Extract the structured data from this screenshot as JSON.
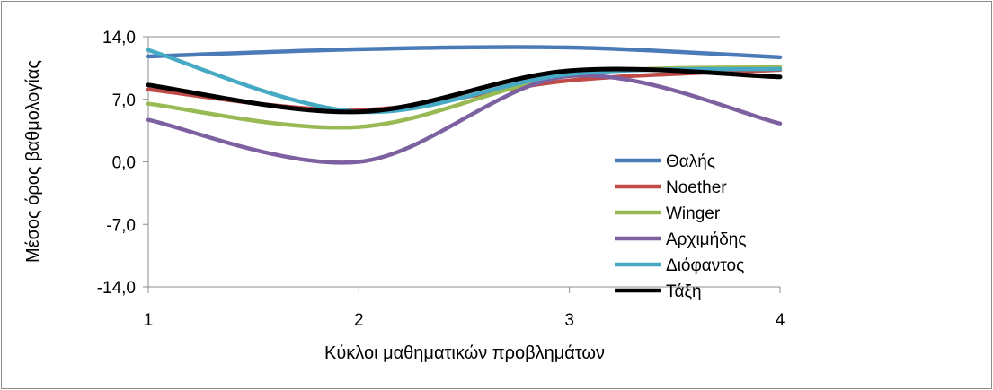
{
  "chart_data": {
    "type": "line",
    "xlabel": "Κύκλοι μαθηματικών προβλημάτων",
    "ylabel": "Μέσος όρος βαθμολογίας",
    "categories": [
      "1",
      "2",
      "3",
      "4"
    ],
    "x_tick_labels": [
      "1",
      "2",
      "3",
      "4"
    ],
    "y_tick_labels": [
      "14,0",
      "7,0",
      "0,0",
      "-7,0",
      "-14,0"
    ],
    "y_ticks": [
      14,
      7,
      0,
      -7,
      -14
    ],
    "ylim": [
      -14,
      14
    ],
    "xlim": [
      1,
      4
    ],
    "grid": "horizontal-top-only",
    "legend_position": "right-inside",
    "smoothed": true,
    "series": [
      {
        "name": "Θαλής",
        "color": "#4a7bb7",
        "values": [
          11.8,
          12.6,
          12.8,
          11.7
        ]
      },
      {
        "name": "Noether",
        "color": "#be4b48",
        "values": [
          8.1,
          5.8,
          9.1,
          10.3
        ]
      },
      {
        "name": "Winger",
        "color": "#98b954",
        "values": [
          6.5,
          3.9,
          9.7,
          10.6
        ]
      },
      {
        "name": "Αρχιμήδης",
        "color": "#7d60a0",
        "values": [
          4.7,
          0.0,
          9.6,
          4.3
        ]
      },
      {
        "name": "Διόφαντος",
        "color": "#46aac5",
        "values": [
          12.5,
          5.6,
          9.8,
          10.4
        ]
      },
      {
        "name": "Τάξη",
        "color": "#000000",
        "values": [
          8.6,
          5.6,
          10.2,
          9.5
        ]
      }
    ]
  }
}
